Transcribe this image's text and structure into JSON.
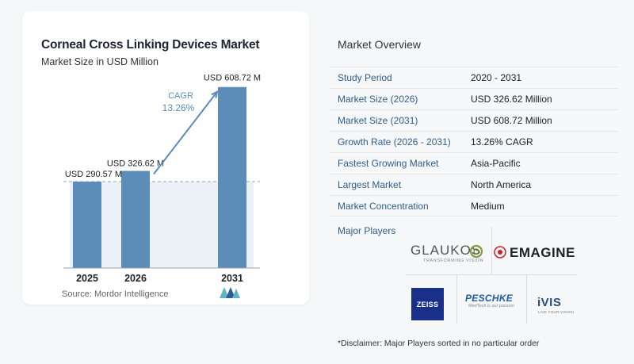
{
  "chart_data": {
    "type": "bar",
    "title": "Corneal Cross Linking Devices Market",
    "subtitle": "Market Size in USD Million",
    "categories": [
      "2025",
      "2026",
      "2031"
    ],
    "values": [
      290.57,
      326.62,
      608.72
    ],
    "data_labels": [
      "USD 290.57 M",
      "USD 326.62 M",
      "USD 608.72 M"
    ],
    "cagr_label": "CAGR",
    "cagr_value": "13.26%",
    "ylim": [
      0,
      640
    ],
    "bar_color": "#5b8db8",
    "band_color": "#dbe6f0"
  },
  "source": "Source:  Mordor Intelligence",
  "overview": {
    "title": "Market Overview",
    "rows": [
      {
        "label": "Study Period",
        "value": "2020 - 2031"
      },
      {
        "label": "Market Size (2026)",
        "value": "USD 326.62 Million"
      },
      {
        "label": "Market Size (2031)",
        "value": "USD 608.72 Million"
      },
      {
        "label": "Growth Rate (2026 - 2031)",
        "value": "13.26% CAGR"
      },
      {
        "label": "Fastest Growing Market",
        "value": "Asia-Pacific"
      },
      {
        "label": "Largest Market",
        "value": "North America"
      },
      {
        "label": "Market Concentration",
        "value": "Medium"
      }
    ]
  },
  "players": {
    "title": "Major Players",
    "glaukos": "GLAUKOS",
    "glaukos_tagline": "TRANSFORMING VISION",
    "emagine": "EMAGINE",
    "zeiss": "ZEISS",
    "peschke": "PESCHKE",
    "peschke_tagline": "MedTech is our passion",
    "ivis": "iVIS",
    "ivis_tagline": "LIVE YOUR VISION"
  },
  "disclaimer": "*Disclaimer: Major Players sorted in no particular order"
}
